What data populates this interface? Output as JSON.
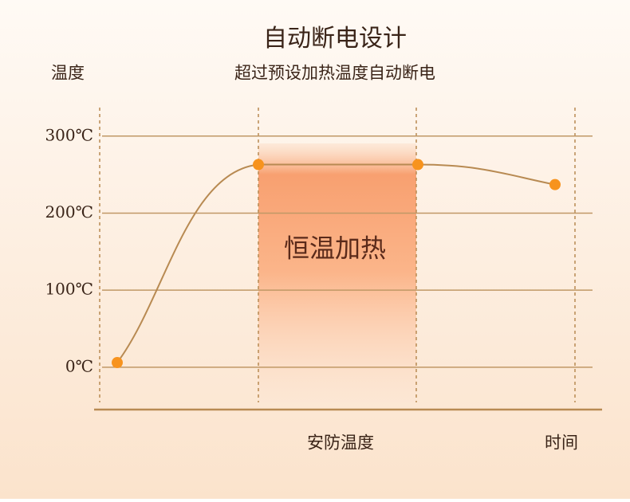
{
  "chart_data": {
    "type": "line",
    "title": "自动断电设计",
    "subtitle": "超过预设加热温度自动断电",
    "y_label": "温度",
    "x_label": "时间",
    "annotations": [
      "恒温加热",
      "安防温度"
    ],
    "categories": [
      null,
      null,
      null,
      null
    ],
    "series": [
      {
        "name": null,
        "color": "#b88a52",
        "marker_color": "#f7931e",
        "values": [
          6,
          263,
          263,
          237
        ]
      }
    ],
    "ylim": [
      -55,
      337
    ],
    "yticks": [
      {
        "value": 0,
        "label": "0℃"
      },
      {
        "value": 100,
        "label": "100℃"
      },
      {
        "value": 200,
        "label": "200℃"
      },
      {
        "value": 300,
        "label": "300℃"
      }
    ],
    "grid": true
  }
}
